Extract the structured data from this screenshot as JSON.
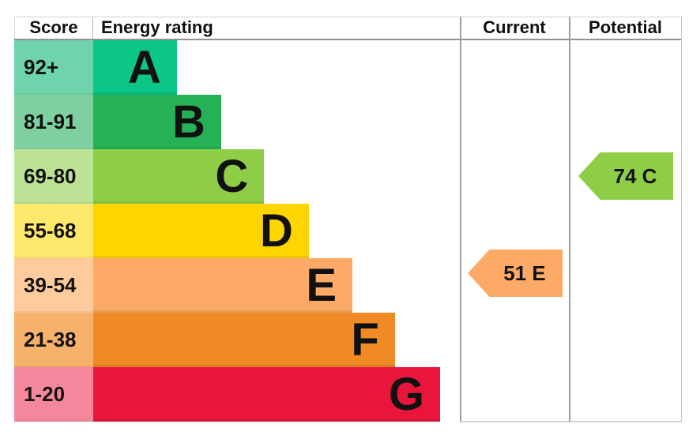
{
  "header": {
    "score": "Score",
    "energy_rating": "Energy rating",
    "current": "Current",
    "potential": "Potential"
  },
  "chart_data": {
    "type": "bar",
    "title": "Energy rating",
    "columns": [
      "Score",
      "Energy rating",
      "Current",
      "Potential"
    ],
    "bands": [
      {
        "letter": "A",
        "score": "92+",
        "color": "#0cc687",
        "tint": "#6fd3ab",
        "width_pct": 22.8
      },
      {
        "letter": "B",
        "score": "81-91",
        "color": "#25b257",
        "tint": "#7fd0a1",
        "width_pct": 34.9
      },
      {
        "letter": "C",
        "score": "69-80",
        "color": "#8dce46",
        "tint": "#bce294",
        "width_pct": 46.6
      },
      {
        "letter": "D",
        "score": "55-68",
        "color": "#ffd500",
        "tint": "#ffe96d",
        "width_pct": 58.8
      },
      {
        "letter": "E",
        "score": "39-54",
        "color": "#fcaa65",
        "tint": "#fdcb9c",
        "width_pct": 70.7
      },
      {
        "letter": "F",
        "score": "21-38",
        "color": "#f08a24",
        "tint": "#f6b26b",
        "width_pct": 82.3
      },
      {
        "letter": "G",
        "score": "1-20",
        "color": "#e9153b",
        "tint": "#f5879d",
        "width_pct": 94.6
      }
    ],
    "current": {
      "label": "51 E",
      "value": 51,
      "band": "E",
      "band_index": 4,
      "color": "#fcaa65"
    },
    "potential": {
      "label": "74 C",
      "value": 74,
      "band": "C",
      "band_index": 2,
      "color": "#8dce46"
    }
  }
}
